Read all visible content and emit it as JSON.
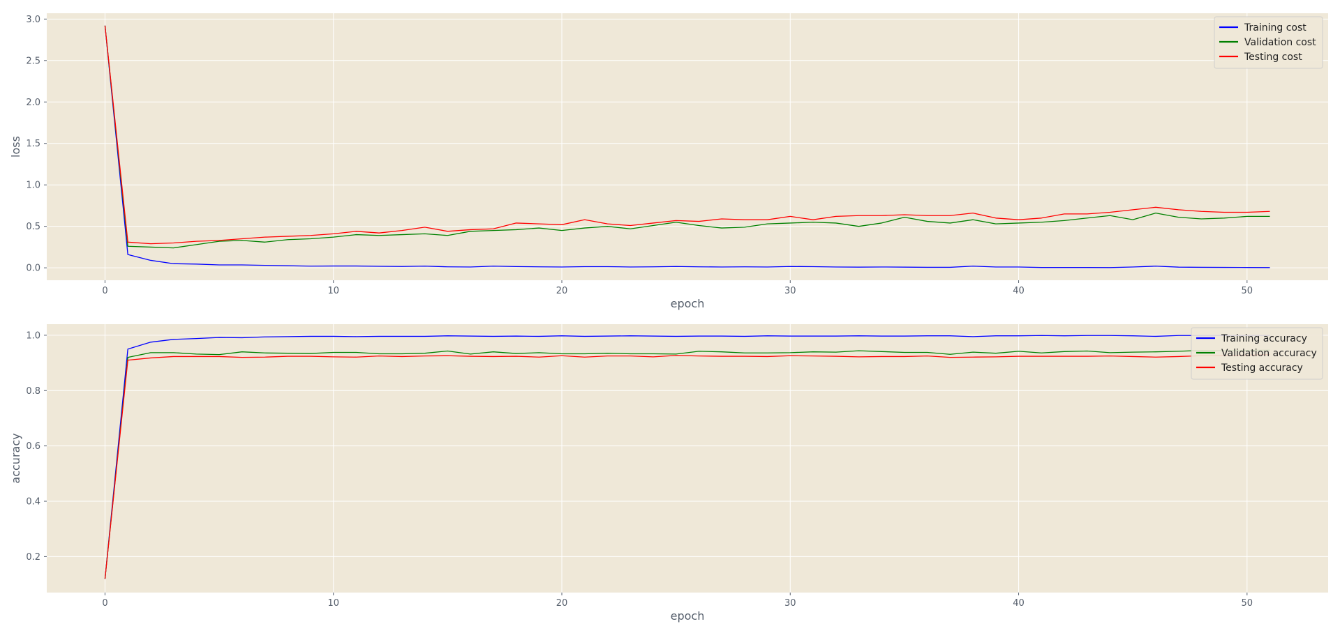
{
  "colors": {
    "background": "#efe8d8",
    "grid": "#ffffff",
    "tick_text": "#555e6b",
    "training": "#0000ff",
    "validation": "#008000",
    "testing": "#ff0000",
    "legend_bg": "#efe8d8",
    "legend_edge": "#cccccc"
  },
  "chart_data": [
    {
      "type": "line",
      "xlabel": "epoch",
      "ylabel": "loss",
      "xlim": [
        -2.55,
        53.55
      ],
      "ylim": [
        -0.15,
        3.07
      ],
      "xticks": [
        0,
        10,
        20,
        30,
        40,
        50
      ],
      "yticks": [
        0.0,
        0.5,
        1.0,
        1.5,
        2.0,
        2.5,
        3.0
      ],
      "ytick_labels": [
        "0.0",
        "0.5",
        "1.0",
        "1.5",
        "2.0",
        "2.5",
        "3.0"
      ],
      "legend_loc": "upper right",
      "grid": true,
      "series": [
        {
          "name": "Training cost",
          "color_key": "training",
          "x": [
            0,
            1,
            2,
            3,
            4,
            5,
            6,
            7,
            8,
            9,
            10,
            11,
            12,
            13,
            14,
            15,
            16,
            17,
            18,
            19,
            20,
            21,
            22,
            23,
            24,
            25,
            26,
            27,
            28,
            29,
            30,
            31,
            32,
            33,
            34,
            35,
            36,
            37,
            38,
            39,
            40,
            41,
            42,
            43,
            44,
            45,
            46,
            47,
            48,
            49,
            50,
            51
          ],
          "values": [
            2.92,
            0.16,
            0.09,
            0.05,
            0.045,
            0.035,
            0.035,
            0.03,
            0.025,
            0.02,
            0.022,
            0.022,
            0.018,
            0.016,
            0.02,
            0.012,
            0.01,
            0.02,
            0.015,
            0.012,
            0.01,
            0.014,
            0.014,
            0.01,
            0.012,
            0.016,
            0.012,
            0.01,
            0.012,
            0.01,
            0.016,
            0.014,
            0.01,
            0.008,
            0.01,
            0.008,
            0.006,
            0.006,
            0.02,
            0.01,
            0.01,
            0.004,
            0.004,
            0.004,
            0.003,
            0.01,
            0.02,
            0.008,
            0.006,
            0.005,
            0.004,
            0.003
          ]
        },
        {
          "name": "Validation cost",
          "color_key": "validation",
          "x": [
            0,
            1,
            2,
            3,
            4,
            5,
            6,
            7,
            8,
            9,
            10,
            11,
            12,
            13,
            14,
            15,
            16,
            17,
            18,
            19,
            20,
            21,
            22,
            23,
            24,
            25,
            26,
            27,
            28,
            29,
            30,
            31,
            32,
            33,
            34,
            35,
            36,
            37,
            38,
            39,
            40,
            41,
            42,
            43,
            44,
            45,
            46,
            47,
            48,
            49,
            50,
            51
          ],
          "values": [
            2.92,
            0.26,
            0.25,
            0.24,
            0.28,
            0.32,
            0.33,
            0.31,
            0.34,
            0.35,
            0.37,
            0.4,
            0.39,
            0.4,
            0.41,
            0.39,
            0.44,
            0.45,
            0.46,
            0.48,
            0.45,
            0.48,
            0.5,
            0.47,
            0.51,
            0.55,
            0.51,
            0.48,
            0.49,
            0.53,
            0.54,
            0.55,
            0.54,
            0.5,
            0.54,
            0.61,
            0.56,
            0.54,
            0.58,
            0.53,
            0.54,
            0.55,
            0.57,
            0.6,
            0.63,
            0.58,
            0.66,
            0.61,
            0.59,
            0.6,
            0.62,
            0.62
          ]
        },
        {
          "name": "Testing cost",
          "color_key": "testing",
          "x": [
            0,
            1,
            2,
            3,
            4,
            5,
            6,
            7,
            8,
            9,
            10,
            11,
            12,
            13,
            14,
            15,
            16,
            17,
            18,
            19,
            20,
            21,
            22,
            23,
            24,
            25,
            26,
            27,
            28,
            29,
            30,
            31,
            32,
            33,
            34,
            35,
            36,
            37,
            38,
            39,
            40,
            41,
            42,
            43,
            44,
            45,
            46,
            47,
            48,
            49,
            50,
            51
          ],
          "values": [
            2.92,
            0.31,
            0.29,
            0.3,
            0.32,
            0.33,
            0.35,
            0.37,
            0.38,
            0.39,
            0.41,
            0.44,
            0.42,
            0.45,
            0.49,
            0.44,
            0.46,
            0.47,
            0.54,
            0.53,
            0.52,
            0.58,
            0.53,
            0.51,
            0.54,
            0.57,
            0.56,
            0.59,
            0.58,
            0.58,
            0.62,
            0.58,
            0.62,
            0.63,
            0.63,
            0.64,
            0.63,
            0.63,
            0.66,
            0.6,
            0.58,
            0.6,
            0.65,
            0.65,
            0.67,
            0.7,
            0.73,
            0.7,
            0.68,
            0.67,
            0.67,
            0.68
          ]
        }
      ]
    },
    {
      "type": "line",
      "xlabel": "epoch",
      "ylabel": "accuracy",
      "xlim": [
        -2.55,
        53.55
      ],
      "ylim": [
        0.07,
        1.04
      ],
      "xticks": [
        0,
        10,
        20,
        30,
        40,
        50
      ],
      "yticks": [
        0.2,
        0.4,
        0.6,
        0.8,
        1.0
      ],
      "ytick_labels": [
        "0.2",
        "0.4",
        "0.6",
        "0.8",
        "1.0"
      ],
      "legend_loc": "upper right",
      "grid": true,
      "series": [
        {
          "name": "Training accuracy",
          "color_key": "training",
          "x": [
            0,
            1,
            2,
            3,
            4,
            5,
            6,
            7,
            8,
            9,
            10,
            11,
            12,
            13,
            14,
            15,
            16,
            17,
            18,
            19,
            20,
            21,
            22,
            23,
            24,
            25,
            26,
            27,
            28,
            29,
            30,
            31,
            32,
            33,
            34,
            35,
            36,
            37,
            38,
            39,
            40,
            41,
            42,
            43,
            44,
            45,
            46,
            47,
            48,
            49,
            50,
            51
          ],
          "values": [
            0.12,
            0.95,
            0.975,
            0.985,
            0.988,
            0.992,
            0.991,
            0.994,
            0.995,
            0.996,
            0.996,
            0.995,
            0.996,
            0.996,
            0.996,
            0.998,
            0.997,
            0.996,
            0.997,
            0.996,
            0.998,
            0.996,
            0.997,
            0.998,
            0.997,
            0.996,
            0.997,
            0.997,
            0.996,
            0.998,
            0.997,
            0.997,
            0.997,
            0.998,
            0.997,
            0.997,
            0.998,
            0.998,
            0.995,
            0.998,
            0.998,
            0.999,
            0.998,
            0.999,
            0.999,
            0.998,
            0.996,
            0.999,
            0.999,
            0.999,
            0.999,
            0.999
          ]
        },
        {
          "name": "Validation accuracy",
          "color_key": "validation",
          "x": [
            0,
            1,
            2,
            3,
            4,
            5,
            6,
            7,
            8,
            9,
            10,
            11,
            12,
            13,
            14,
            15,
            16,
            17,
            18,
            19,
            20,
            21,
            22,
            23,
            24,
            25,
            26,
            27,
            28,
            29,
            30,
            31,
            32,
            33,
            34,
            35,
            36,
            37,
            38,
            39,
            40,
            41,
            42,
            43,
            44,
            45,
            46,
            47,
            48,
            49,
            50,
            51
          ],
          "values": [
            0.12,
            0.92,
            0.937,
            0.937,
            0.932,
            0.93,
            0.94,
            0.936,
            0.935,
            0.934,
            0.938,
            0.938,
            0.933,
            0.933,
            0.935,
            0.943,
            0.932,
            0.94,
            0.934,
            0.937,
            0.933,
            0.933,
            0.935,
            0.933,
            0.933,
            0.932,
            0.942,
            0.94,
            0.936,
            0.936,
            0.937,
            0.94,
            0.939,
            0.944,
            0.941,
            0.938,
            0.938,
            0.931,
            0.939,
            0.935,
            0.942,
            0.936,
            0.941,
            0.943,
            0.937,
            0.939,
            0.94,
            0.942,
            0.945,
            0.944,
            0.945,
            0.946
          ]
        },
        {
          "name": "Testing accuracy",
          "color_key": "testing",
          "x": [
            0,
            1,
            2,
            3,
            4,
            5,
            6,
            7,
            8,
            9,
            10,
            11,
            12,
            13,
            14,
            15,
            16,
            17,
            18,
            19,
            20,
            21,
            22,
            23,
            24,
            25,
            26,
            27,
            28,
            29,
            30,
            31,
            32,
            33,
            34,
            35,
            36,
            37,
            38,
            39,
            40,
            41,
            42,
            43,
            44,
            45,
            46,
            47,
            48,
            49,
            50,
            51
          ],
          "values": [
            0.12,
            0.91,
            0.918,
            0.923,
            0.923,
            0.923,
            0.92,
            0.921,
            0.924,
            0.924,
            0.922,
            0.921,
            0.925,
            0.923,
            0.925,
            0.926,
            0.924,
            0.923,
            0.924,
            0.921,
            0.926,
            0.921,
            0.925,
            0.925,
            0.922,
            0.927,
            0.925,
            0.924,
            0.924,
            0.923,
            0.926,
            0.925,
            0.924,
            0.922,
            0.923,
            0.923,
            0.925,
            0.92,
            0.921,
            0.922,
            0.924,
            0.924,
            0.924,
            0.924,
            0.925,
            0.923,
            0.921,
            0.923,
            0.926,
            0.927,
            0.928,
            0.93
          ]
        }
      ]
    }
  ]
}
